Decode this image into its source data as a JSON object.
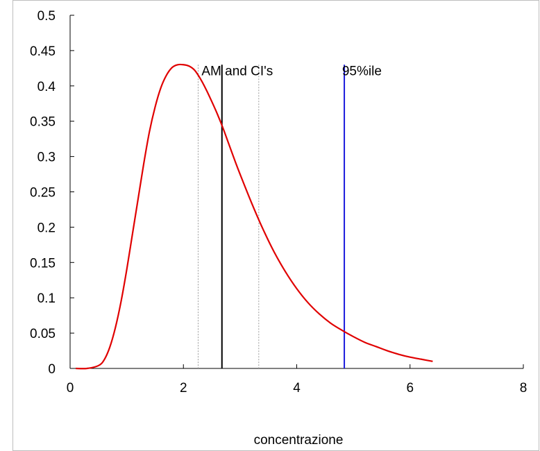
{
  "chart_data": {
    "type": "line",
    "title": "",
    "xlabel": "concentrazione",
    "ylabel": "",
    "xlim": [
      0,
      8
    ],
    "ylim": [
      0,
      0.5
    ],
    "xticks": [
      "0",
      "2",
      "4",
      "6",
      "8"
    ],
    "yticks": [
      "0",
      "0.05",
      "0.1",
      "0.15",
      "0.2",
      "0.25",
      "0.3",
      "0.35",
      "0.4",
      "0.45",
      "0.5"
    ],
    "grid": false,
    "legend": "none",
    "series": [
      {
        "color": "#e00000",
        "x": [
          0.1,
          0.3,
          0.5,
          0.6,
          0.7,
          0.8,
          0.9,
          1.0,
          1.1,
          1.2,
          1.3,
          1.4,
          1.5,
          1.6,
          1.7,
          1.8,
          1.9,
          2.0,
          2.1,
          2.2,
          2.3,
          2.4,
          2.5,
          2.6,
          2.7,
          2.8,
          2.9,
          3.0,
          3.2,
          3.4,
          3.6,
          3.8,
          4.0,
          4.2,
          4.4,
          4.6,
          4.8,
          5.0,
          5.2,
          5.4,
          5.6,
          5.8,
          6.0,
          6.2,
          6.4
        ],
        "values": [
          0.0,
          0.0,
          0.004,
          0.012,
          0.03,
          0.058,
          0.095,
          0.14,
          0.19,
          0.24,
          0.29,
          0.335,
          0.37,
          0.397,
          0.415,
          0.426,
          0.43,
          0.43,
          0.428,
          0.422,
          0.41,
          0.395,
          0.378,
          0.36,
          0.34,
          0.318,
          0.296,
          0.275,
          0.235,
          0.198,
          0.165,
          0.137,
          0.113,
          0.093,
          0.077,
          0.064,
          0.054,
          0.045,
          0.037,
          0.031,
          0.025,
          0.02,
          0.016,
          0.013,
          0.01
        ]
      }
    ],
    "reference_lines": [
      {
        "x": 2.26,
        "style": "dotted",
        "color": "#9a9a9a",
        "y_top": 0.43
      },
      {
        "x": 2.68,
        "style": "solid",
        "color": "#000000",
        "y_top": 0.43
      },
      {
        "x": 3.33,
        "style": "dotted",
        "color": "#9a9a9a",
        "y_top": 0.43
      },
      {
        "x": 4.84,
        "style": "solid",
        "color": "#1a1adc",
        "y_top": 0.43
      }
    ],
    "annotations": [
      {
        "text": "AM and CI's",
        "x": 2.95,
        "y": 0.415
      },
      {
        "text": "95%ile",
        "x": 5.15,
        "y": 0.415
      }
    ]
  }
}
